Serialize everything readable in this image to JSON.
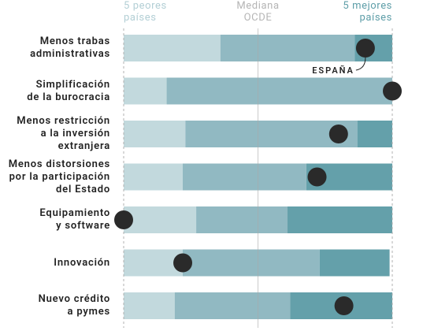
{
  "chart_data": {
    "type": "bar",
    "orientation": "horizontal",
    "stacked": true,
    "categories": [
      "Menos trabas\nadministrativas",
      "Simplificación\nde la burocracia",
      "Menos restricción\na la inversión\nextranjera",
      "Menos distorsiones\npor la participación\ndel Estado",
      "Equipamiento\ny software",
      "Innovación",
      "Nuevo crédito\na pymes"
    ],
    "xlim": [
      0,
      100
    ],
    "xticks": [
      {
        "value": 0,
        "label": "5 peores\npaíses"
      },
      {
        "value": 50,
        "label": "Mediana\nOCDE"
      },
      {
        "value": 100,
        "label": "5 mejores\npaíses"
      }
    ],
    "series": [
      {
        "color": "#c2d9dd",
        "values": [
          36,
          16,
          23,
          22,
          27,
          22,
          19
        ]
      },
      {
        "color": "#91b9c2",
        "values": [
          50,
          84,
          64,
          46,
          34,
          51,
          43
        ]
      },
      {
        "color": "#64a0aa",
        "values": [
          14,
          0,
          13,
          32,
          39,
          26,
          38
        ]
      }
    ],
    "markers": {
      "name": "ESPAÑA",
      "color": "#2a2a2a",
      "values": [
        90,
        100,
        80,
        72,
        0,
        22,
        82
      ]
    }
  }
}
